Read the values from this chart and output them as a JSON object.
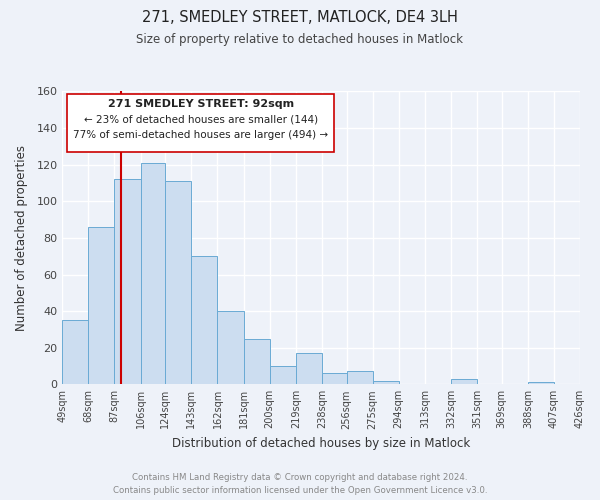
{
  "title": "271, SMEDLEY STREET, MATLOCK, DE4 3LH",
  "subtitle": "Size of property relative to detached houses in Matlock",
  "xlabel": "Distribution of detached houses by size in Matlock",
  "ylabel": "Number of detached properties",
  "bin_labels": [
    "49sqm",
    "68sqm",
    "87sqm",
    "106sqm",
    "124sqm",
    "143sqm",
    "162sqm",
    "181sqm",
    "200sqm",
    "219sqm",
    "238sqm",
    "256sqm",
    "275sqm",
    "294sqm",
    "313sqm",
    "332sqm",
    "351sqm",
    "369sqm",
    "388sqm",
    "407sqm",
    "426sqm"
  ],
  "bin_edges": [
    49,
    68,
    87,
    106,
    124,
    143,
    162,
    181,
    200,
    219,
    238,
    256,
    275,
    294,
    313,
    332,
    351,
    369,
    388,
    407,
    426
  ],
  "bar_heights": [
    35,
    86,
    112,
    121,
    111,
    70,
    40,
    25,
    10,
    17,
    6,
    7,
    2,
    0,
    0,
    3,
    0,
    0,
    1,
    0,
    0
  ],
  "bar_color": "#ccddf0",
  "bar_edge_color": "#6aaad4",
  "property_size": 92,
  "vline_color": "#cc0000",
  "annotation_text_line1": "271 SMEDLEY STREET: 92sqm",
  "annotation_text_line2": "← 23% of detached houses are smaller (144)",
  "annotation_text_line3": "77% of semi-detached houses are larger (494) →",
  "annotation_box_color": "#ffffff",
  "annotation_box_edge": "#cc0000",
  "ylim": [
    0,
    160
  ],
  "yticks": [
    0,
    20,
    40,
    60,
    80,
    100,
    120,
    140,
    160
  ],
  "footer_line1": "Contains HM Land Registry data © Crown copyright and database right 2024.",
  "footer_line2": "Contains public sector information licensed under the Open Government Licence v3.0.",
  "background_color": "#eef2f9",
  "grid_color": "#ffffff",
  "title_fontsize": 10.5,
  "subtitle_fontsize": 8.5
}
